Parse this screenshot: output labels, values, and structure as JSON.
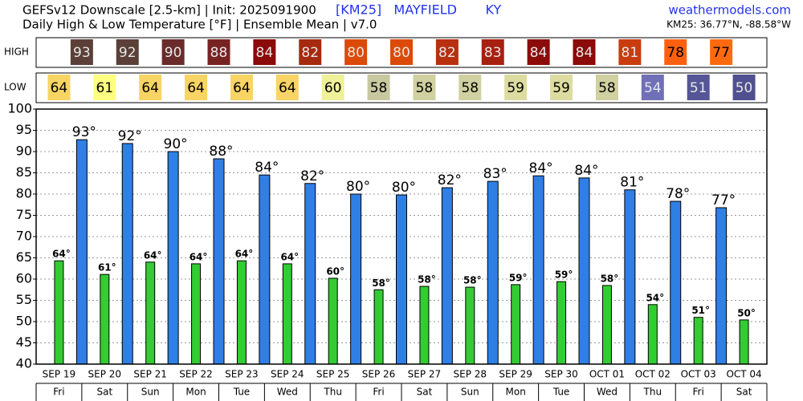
{
  "chart_data": {
    "type": "bar",
    "title": "GEFSv12 Downscale [2.5-km] | Init: 2025091900",
    "subtitle": "Daily High & Low Temperature [°F] | Ensemble Mean | v7.0",
    "station": "[KM25]   MAYFIELD       KY",
    "source": "weathermodels.com",
    "coords": "KM25: 36.77°N, -88.58°W",
    "categories": [
      "SEP 19",
      "SEP 20",
      "SEP 21",
      "SEP 22",
      "SEP 23",
      "SEP 24",
      "SEP 25",
      "SEP 26",
      "SEP 27",
      "SEP 28",
      "SEP 29",
      "SEP 30",
      "OCT 01",
      "OCT 02",
      "OCT 03",
      "OCT 04"
    ],
    "weekdays": [
      "Fri",
      "Sat",
      "Sun",
      "Mon",
      "Tue",
      "Wed",
      "Thu",
      "Fri",
      "Sat",
      "Sun",
      "Mon",
      "Tue",
      "Wed",
      "Thu",
      "Fri",
      "Sat"
    ],
    "series": [
      {
        "name": "HIGH",
        "color": "#2f7fe6",
        "values": [
          92.8,
          91.9,
          90,
          88.3,
          84.5,
          82.5,
          80,
          79.8,
          81.5,
          83,
          84.3,
          83.8,
          81,
          78.3,
          76.8,
          null
        ],
        "value_labels": [
          "93°",
          "92°",
          "90°",
          "88°",
          "84°",
          "82°",
          "80°",
          "80°",
          "82°",
          "83°",
          "84°",
          "84°",
          "81°",
          "78°",
          "77°",
          null
        ],
        "table": [
          93,
          92,
          90,
          88,
          84,
          82,
          80,
          80,
          82,
          83,
          84,
          84,
          81,
          78,
          77,
          null
        ],
        "table_colors": [
          "#5b4038",
          "#5b4038",
          "#6a2b2b",
          "#782323",
          "#8b0a0a",
          "#a52a10",
          "#dc4a08",
          "#dc4a08",
          "#b8300e",
          "#a82010",
          "#8b0a0a",
          "#8b0a0a",
          "#c83c10",
          "#ff6010",
          "#ff6a10",
          null
        ]
      },
      {
        "name": "LOW",
        "color": "#33cc33",
        "values": [
          64.3,
          61.1,
          64,
          63.6,
          64.3,
          63.6,
          60.2,
          57.5,
          58.3,
          58.1,
          58.7,
          59.4,
          58.5,
          54,
          51,
          50.4
        ],
        "value_labels": [
          "64°",
          "61°",
          "64°",
          "64°",
          "64°",
          "64°",
          "60°",
          "58°",
          "58°",
          "58°",
          "59°",
          "59°",
          "58°",
          "54°",
          "51°",
          "50°"
        ],
        "table": [
          64,
          61,
          64,
          64,
          64,
          64,
          60,
          58,
          58,
          58,
          59,
          59,
          58,
          54,
          51,
          50
        ],
        "table_colors": [
          "#f8d464",
          "#ffff80",
          "#f8d464",
          "#f8d464",
          "#f8d464",
          "#f8d464",
          "#f0f098",
          "#c8c8a0",
          "#d0d0a0",
          "#d0d0a0",
          "#dcdca0",
          "#dcdca0",
          "#d0d0a0",
          "#7070b8",
          "#555598",
          "#505090"
        ]
      }
    ],
    "ylim": [
      40,
      100
    ],
    "yticks": [
      40,
      45,
      50,
      55,
      60,
      65,
      70,
      75,
      80,
      85,
      90,
      95,
      100
    ],
    "grid": true
  }
}
